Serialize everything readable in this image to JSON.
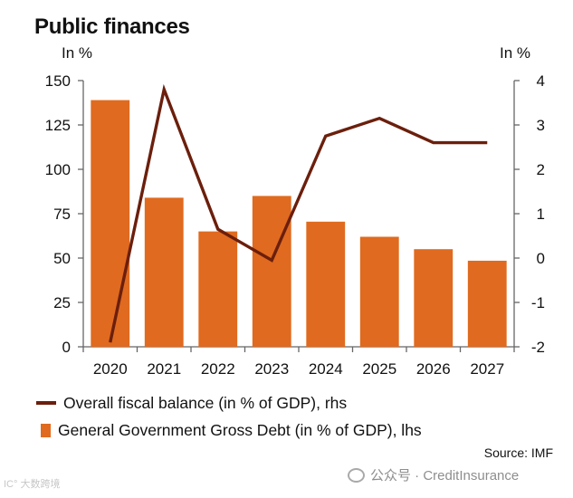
{
  "title": "Public finances",
  "chart_data": {
    "type": "bar+line",
    "categories": [
      "2020",
      "2021",
      "2022",
      "2023",
      "2024",
      "2025",
      "2026",
      "2027"
    ],
    "series": [
      {
        "name": "General Government Gross Debt (in % of GDP), lhs",
        "type": "bar",
        "axis": "left",
        "color": "#e06a1f",
        "values": [
          139,
          84,
          65,
          85,
          70.5,
          62,
          55,
          48.5
        ]
      },
      {
        "name": "Overall fiscal balance (in % of GDP), rhs",
        "type": "line",
        "axis": "right",
        "color": "#6b1f0c",
        "values": [
          -1.9,
          3.8,
          0.65,
          -0.05,
          2.75,
          3.15,
          2.6,
          2.6
        ]
      }
    ],
    "left_axis": {
      "label": "In %",
      "range": [
        0,
        150
      ],
      "ticks": [
        "150",
        "125",
        "100",
        "75",
        "50",
        "25",
        "0"
      ]
    },
    "right_axis": {
      "label": "In %",
      "range": [
        -2,
        4
      ],
      "ticks": [
        "4",
        "3",
        "2",
        "1",
        "0",
        "-1",
        "-2"
      ]
    },
    "legend": [
      {
        "label": "Overall fiscal balance (in % of GDP), rhs",
        "type": "line"
      },
      {
        "label": "General Government Gross Debt (in % of GDP), lhs",
        "type": "bar"
      }
    ],
    "source": "Source: IMF"
  },
  "watermark": {
    "left": "IC° 大数跨境",
    "right": "公众号 · CreditInsurance"
  }
}
